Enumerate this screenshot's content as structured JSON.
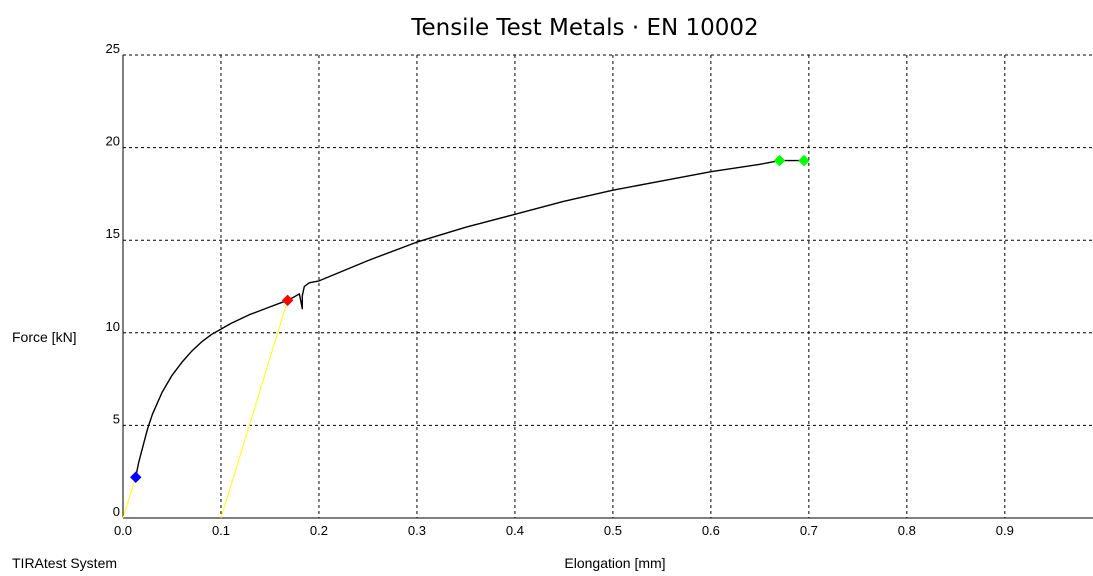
{
  "chart_data": {
    "type": "line",
    "title": "Tensile Test Metals · EN 10002",
    "xlabel": "Elongation [mm]",
    "ylabel": "Force [kN]",
    "footer": "TIRAtest System",
    "xlim": [
      0,
      0.99
    ],
    "ylim": [
      0,
      25
    ],
    "x_ticks": [
      "0.0",
      "0.1",
      "0.2",
      "0.3",
      "0.4",
      "0.5",
      "0.6",
      "0.7",
      "0.8",
      "0.9"
    ],
    "x_tick_values": [
      0,
      0.1,
      0.2,
      0.3,
      0.4,
      0.5,
      0.6,
      0.7,
      0.8,
      0.9
    ],
    "y_ticks": [
      "0",
      "5",
      "10",
      "15",
      "20",
      "25"
    ],
    "y_tick_values": [
      0,
      5,
      10,
      15,
      20,
      25
    ],
    "grid": true,
    "series": [
      {
        "color": "#000000",
        "x": [
          0.013,
          0.016,
          0.02,
          0.025,
          0.03,
          0.035,
          0.04,
          0.05,
          0.06,
          0.07,
          0.08,
          0.09,
          0.1,
          0.11,
          0.12,
          0.13,
          0.14,
          0.15,
          0.16,
          0.168,
          0.175,
          0.18,
          0.183,
          0.183,
          0.185,
          0.19,
          0.2,
          0.25,
          0.3,
          0.35,
          0.4,
          0.45,
          0.5,
          0.55,
          0.6,
          0.65,
          0.67,
          0.695
        ],
        "y": [
          2.2,
          3.0,
          3.8,
          4.8,
          5.6,
          6.2,
          6.8,
          7.7,
          8.4,
          9.0,
          9.5,
          9.9,
          10.2,
          10.5,
          10.75,
          11.0,
          11.2,
          11.4,
          11.6,
          11.75,
          11.95,
          12.1,
          11.3,
          12.0,
          12.5,
          12.7,
          12.8,
          13.9,
          14.9,
          15.7,
          16.4,
          17.1,
          17.7,
          18.2,
          18.7,
          19.1,
          19.3,
          19.3
        ]
      },
      {
        "color": "#ffff00",
        "x": [
          0.0,
          0.013
        ],
        "y": [
          0.0,
          2.2
        ]
      },
      {
        "color": "#ffff00",
        "x": [
          0.1,
          0.168
        ],
        "y": [
          0.0,
          11.75
        ]
      }
    ],
    "markers": [
      {
        "x": 0.013,
        "y": 2.2,
        "color": "#0000ff"
      },
      {
        "x": 0.168,
        "y": 11.75,
        "color": "#ff0000"
      },
      {
        "x": 0.67,
        "y": 19.3,
        "color": "#00ff00"
      },
      {
        "x": 0.695,
        "y": 19.3,
        "color": "#00ff00"
      }
    ]
  }
}
